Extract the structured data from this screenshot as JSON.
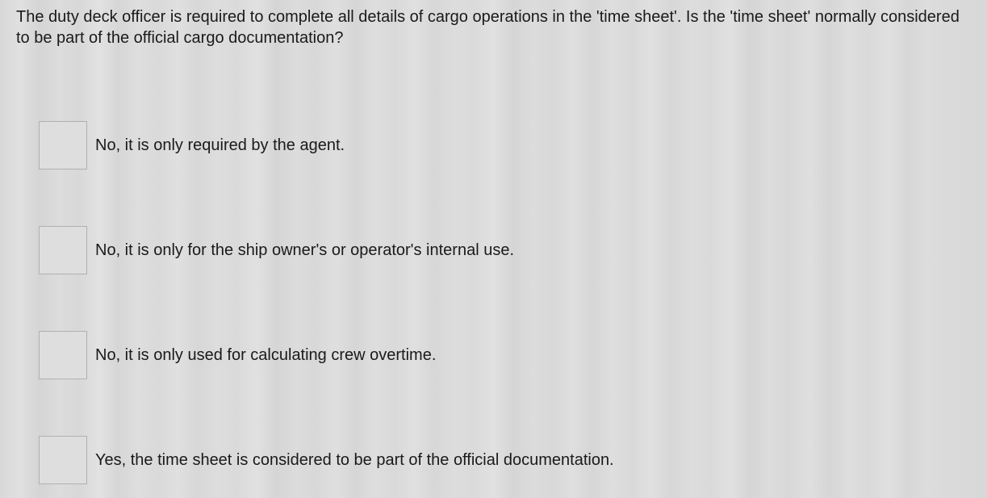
{
  "question": {
    "text": "The duty deck officer is required to complete all details of cargo operations in the 'time sheet'. Is the 'time sheet' normally considered to be part of the official cargo documentation?"
  },
  "options": [
    {
      "label": "No, it is only required by the agent."
    },
    {
      "label": "No, it is only for the ship owner's or operator's internal use."
    },
    {
      "label": "No, it is only used for calculating crew overtime."
    },
    {
      "label": "Yes, the time sheet is considered to be part of the official documentation."
    }
  ],
  "styling": {
    "background_base": "#dadada",
    "checkbox_bg": "#dedede",
    "checkbox_border": "#b0b0b0",
    "text_color": "#1a1a1a",
    "question_fontsize": 20,
    "option_fontsize": 20,
    "checkbox_size": 60
  }
}
